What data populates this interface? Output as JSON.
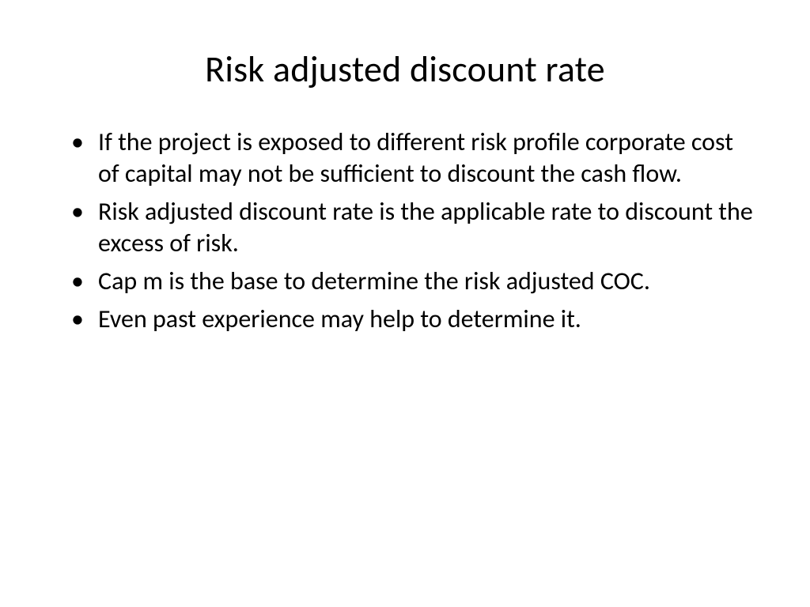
{
  "slide": {
    "title": "Risk adjusted discount rate",
    "bullets": [
      "If the project is exposed to different risk profile corporate cost of capital may not be sufficient to discount the cash flow.",
      "Risk adjusted discount rate is the applicable rate to discount the excess of risk.",
      "Cap m is the base to determine the risk adjusted COC.",
      "Even past experience may help to determine it."
    ],
    "title_fontsize": 46,
    "body_fontsize": 32,
    "text_color": "#000000",
    "background_color": "#ffffff",
    "font_family": "Calibri"
  }
}
